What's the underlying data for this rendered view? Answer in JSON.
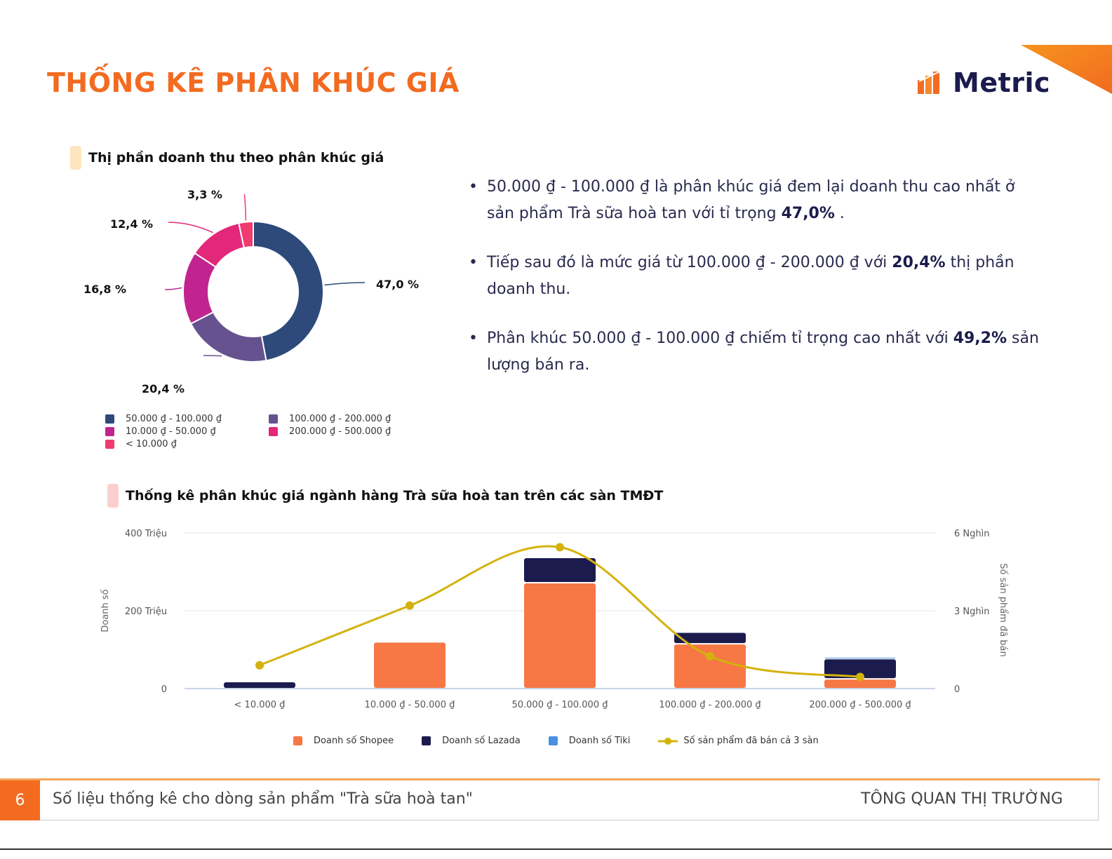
{
  "page_title": "THỐNG KÊ PHÂN KHÚC GIÁ",
  "logo": {
    "text": "Metric"
  },
  "colors": {
    "accent": "#f26b21",
    "navy": "#1b1b4d"
  },
  "section1": {
    "heading": "Thị phần doanh thu theo phân khúc giá"
  },
  "section2": {
    "heading": "Thống kê phân khúc giá ngành hàng Trà sữa hoà tan trên các sàn TMĐT"
  },
  "bullets": [
    {
      "pre": "50.000 ₫ - 100.000 ₫ là phân khúc giá đem lại doanh thu cao nhất ở sản phẩm Trà sữa hoà tan với tỉ trọng ",
      "bold": "47,0%",
      "post": " ."
    },
    {
      "pre": "Tiếp sau đó là mức giá từ 100.000 ₫ - 200.000 ₫ với ",
      "bold": "20,4%",
      "post": " thị phần doanh thu."
    },
    {
      "pre": "Phân khúc 50.000 ₫ - 100.000 ₫ chiếm tỉ trọng cao nhất với ",
      "bold": "49,2%",
      "post": " sản lượng bán ra."
    }
  ],
  "footer": {
    "page_number": "6",
    "text": "Số liệu thống kê cho dòng sản phẩm \"Trà sữa hoà tan\"",
    "right": "TÔNG QUAN THỊ TRƯỜNG"
  },
  "chart_data": [
    {
      "type": "pie",
      "title": "Thị phần doanh thu theo phân khúc giá",
      "donut": true,
      "slices": [
        {
          "label": "50.000 ₫ - 100.000 ₫",
          "value": 47.0,
          "display": "47,0 %",
          "color": "#2d4a7a"
        },
        {
          "label": "100.000 ₫ - 200.000 ₫",
          "value": 20.4,
          "display": "20,4 %",
          "color": "#66528f"
        },
        {
          "label": "10.000 ₫ - 50.000 ₫",
          "value": 16.8,
          "display": "16,8 %",
          "color": "#c2248f"
        },
        {
          "label": "200.000 ₫ - 500.000 ₫",
          "value": 12.4,
          "display": "12,4 %",
          "color": "#e3287a"
        },
        {
          "label": "< 10.000 ₫",
          "value": 3.3,
          "display": "3,3 %",
          "color": "#f03b6e"
        }
      ]
    },
    {
      "type": "bar",
      "stacked": true,
      "title": "Thống kê phân khúc giá ngành hàng Trà sữa hoà tan trên các sàn TMĐT",
      "categories": [
        "< 10.000 ₫",
        "10.000 ₫ - 50.000 ₫",
        "50.000 ₫ - 100.000 ₫",
        "100.000 ₫ - 200.000 ₫",
        "200.000 ₫ - 500.000 ₫"
      ],
      "ylabel": "Doanh số",
      "ylabel_right": "Số sản phẩm đã bán",
      "ylim": [
        0,
        400
      ],
      "ylim_right": [
        0,
        6000
      ],
      "y_ticks": [
        "0",
        "200 Triệu",
        "400 Triệu"
      ],
      "y_right_ticks": [
        "0",
        "3 Nghìn",
        "6 Nghìn"
      ],
      "series": [
        {
          "name": "Doanh số Shopee",
          "values": [
            0,
            120,
            272,
            115,
            25
          ],
          "color": "#f77745"
        },
        {
          "name": "Doanh số Lazada",
          "values": [
            18,
            0,
            65,
            30,
            52
          ],
          "color": "#1b1b4d"
        },
        {
          "name": "Doanh số Tiki",
          "values": [
            0,
            0,
            0,
            0,
            4
          ],
          "color": "#4a90e2"
        },
        {
          "name": "Số sản phẩm đã bán cả 3 sàn",
          "values": [
            900,
            3200,
            5450,
            1250,
            450
          ],
          "color": "#d4b20d",
          "type": "line",
          "axis": "right"
        }
      ]
    }
  ]
}
